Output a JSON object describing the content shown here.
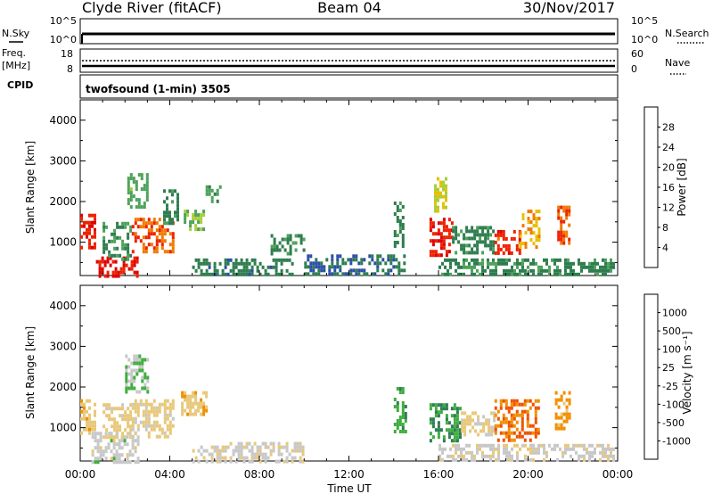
{
  "header": {
    "station": "Clyde River (fitACF)",
    "beam": "Beam 04",
    "date": "30/Nov/2017"
  },
  "top_panels": {
    "nsky_label": "N.Sky",
    "nsearch_label": "N.Search",
    "nsky_ticks": [
      "10^5",
      "10^0"
    ],
    "nsearch_ticks": [
      "10^5",
      "10^0"
    ],
    "freq_label_line1": "Freq.",
    "freq_label_line2": "[MHz]",
    "freq_ticks": [
      "18",
      "8"
    ],
    "nave_label": "Nave",
    "nave_ticks": [
      "60",
      "0"
    ],
    "cpid_label": "CPID",
    "cpid_text": "twofsound (1-min) 3505"
  },
  "colorbars": {
    "power": {
      "title": "Power [dB]",
      "tick_labels": [
        "28",
        "24",
        "20",
        "16",
        "12",
        "8",
        "4"
      ],
      "colors": [
        "#0000ff",
        "#2a4fa8",
        "#2f7d4f",
        "#4ea25a",
        "#a8cf3a",
        "#e8c000",
        "#f07a00",
        "#ee2200",
        "#dd0000"
      ]
    },
    "velocity": {
      "title": "Velocity [m s⁻¹]",
      "tick_labels": [
        "1000",
        "500",
        "100",
        "25",
        "-25",
        "-100",
        "-500",
        "-1000"
      ],
      "colors": [
        "#1a1ad8",
        "#1f5fa3",
        "#2e7d55",
        "#3fae3f",
        "#c8c8c8",
        "#e8c87a",
        "#f09000",
        "#f05000",
        "#dd0000"
      ]
    }
  },
  "time_axis": {
    "label": "Time UT",
    "ticks": [
      "00:00",
      "04:00",
      "08:00",
      "12:00",
      "16:00",
      "20:00",
      "00:00"
    ]
  },
  "chart_data": [
    {
      "type": "heatmap",
      "panel": "power",
      "xlabel": "Time UT",
      "ylabel": "Slant Range [km]",
      "x_range_hours": [
        0,
        24
      ],
      "ylim": [
        180,
        4500
      ],
      "y_ticks": [
        1000,
        2000,
        3000,
        4000
      ],
      "colorbar": "Power [dB]",
      "color_range": [
        0,
        30
      ],
      "blobs": [
        {
          "t0": 0.0,
          "t1": 0.6,
          "r0": 850,
          "r1": 1700,
          "value": 26
        },
        {
          "t0": 0.7,
          "t1": 2.6,
          "r0": 180,
          "r1": 650,
          "value": 27
        },
        {
          "t0": 1.0,
          "t1": 2.2,
          "r0": 600,
          "r1": 1500,
          "value": 10
        },
        {
          "t0": 2.1,
          "t1": 3.0,
          "r0": 1900,
          "r1": 2700,
          "value": 12
        },
        {
          "t0": 2.3,
          "t1": 4.1,
          "r0": 800,
          "r1": 1600,
          "value": 23
        },
        {
          "t0": 3.7,
          "t1": 4.3,
          "r0": 1500,
          "r1": 2300,
          "value": 9
        },
        {
          "t0": 4.5,
          "t1": 5.5,
          "r0": 1300,
          "r1": 1800,
          "value": 13
        },
        {
          "t0": 5.6,
          "t1": 6.3,
          "r0": 2000,
          "r1": 2400,
          "value": 11
        },
        {
          "t0": 5.0,
          "t1": 9.5,
          "r0": 180,
          "r1": 600,
          "value": 8
        },
        {
          "t0": 8.5,
          "t1": 10.0,
          "r0": 700,
          "r1": 1200,
          "value": 10
        },
        {
          "t0": 10.0,
          "t1": 14.5,
          "r0": 180,
          "r1": 700,
          "value": 7
        },
        {
          "t0": 14.0,
          "t1": 14.4,
          "r0": 900,
          "r1": 2000,
          "value": 9
        },
        {
          "t0": 15.6,
          "t1": 16.6,
          "r0": 700,
          "r1": 1600,
          "value": 26
        },
        {
          "t0": 15.8,
          "t1": 16.3,
          "r0": 1800,
          "r1": 2600,
          "value": 17
        },
        {
          "t0": 16.6,
          "t1": 18.4,
          "r0": 750,
          "r1": 1400,
          "value": 9
        },
        {
          "t0": 18.5,
          "t1": 19.6,
          "r0": 700,
          "r1": 1300,
          "value": 25
        },
        {
          "t0": 19.6,
          "t1": 20.5,
          "r0": 900,
          "r1": 1800,
          "value": 20
        },
        {
          "t0": 21.3,
          "t1": 21.8,
          "r0": 1000,
          "r1": 1900,
          "value": 24
        },
        {
          "t0": 16.0,
          "t1": 23.8,
          "r0": 180,
          "r1": 600,
          "value": 9
        }
      ]
    },
    {
      "type": "heatmap",
      "panel": "velocity",
      "xlabel": "Time UT",
      "ylabel": "Slant Range [km]",
      "x_range_hours": [
        0,
        24
      ],
      "ylim": [
        180,
        4500
      ],
      "y_ticks": [
        1000,
        2000,
        3000,
        4000
      ],
      "colorbar": "Velocity [m s⁻¹]",
      "color_range": [
        -1200,
        1200
      ],
      "blobs": [
        {
          "t0": 0.0,
          "t1": 0.7,
          "r0": 850,
          "r1": 1700,
          "value": 300
        },
        {
          "t0": 0.5,
          "t1": 2.6,
          "r0": 180,
          "r1": 900,
          "value": 0
        },
        {
          "t0": 1.0,
          "t1": 2.2,
          "r0": 800,
          "r1": 1600,
          "value": 250
        },
        {
          "t0": 2.0,
          "t1": 3.0,
          "r0": 1900,
          "r1": 2800,
          "value": -150
        },
        {
          "t0": 2.3,
          "t1": 4.1,
          "r0": 800,
          "r1": 1700,
          "value": 200
        },
        {
          "t0": 4.5,
          "t1": 5.6,
          "r0": 1300,
          "r1": 1900,
          "value": 300
        },
        {
          "t0": 5.0,
          "t1": 10.0,
          "r0": 180,
          "r1": 650,
          "value": 60
        },
        {
          "t0": 14.0,
          "t1": 14.5,
          "r0": 900,
          "r1": 2000,
          "value": -300
        },
        {
          "t0": 15.6,
          "t1": 17.0,
          "r0": 700,
          "r1": 1600,
          "value": -400
        },
        {
          "t0": 17.0,
          "t1": 18.5,
          "r0": 800,
          "r1": 1400,
          "value": 200
        },
        {
          "t0": 18.5,
          "t1": 20.5,
          "r0": 700,
          "r1": 1700,
          "value": 700
        },
        {
          "t0": 21.2,
          "t1": 21.8,
          "r0": 1000,
          "r1": 1900,
          "value": 500
        },
        {
          "t0": 16.0,
          "t1": 23.8,
          "r0": 180,
          "r1": 600,
          "value": 80
        }
      ]
    }
  ]
}
